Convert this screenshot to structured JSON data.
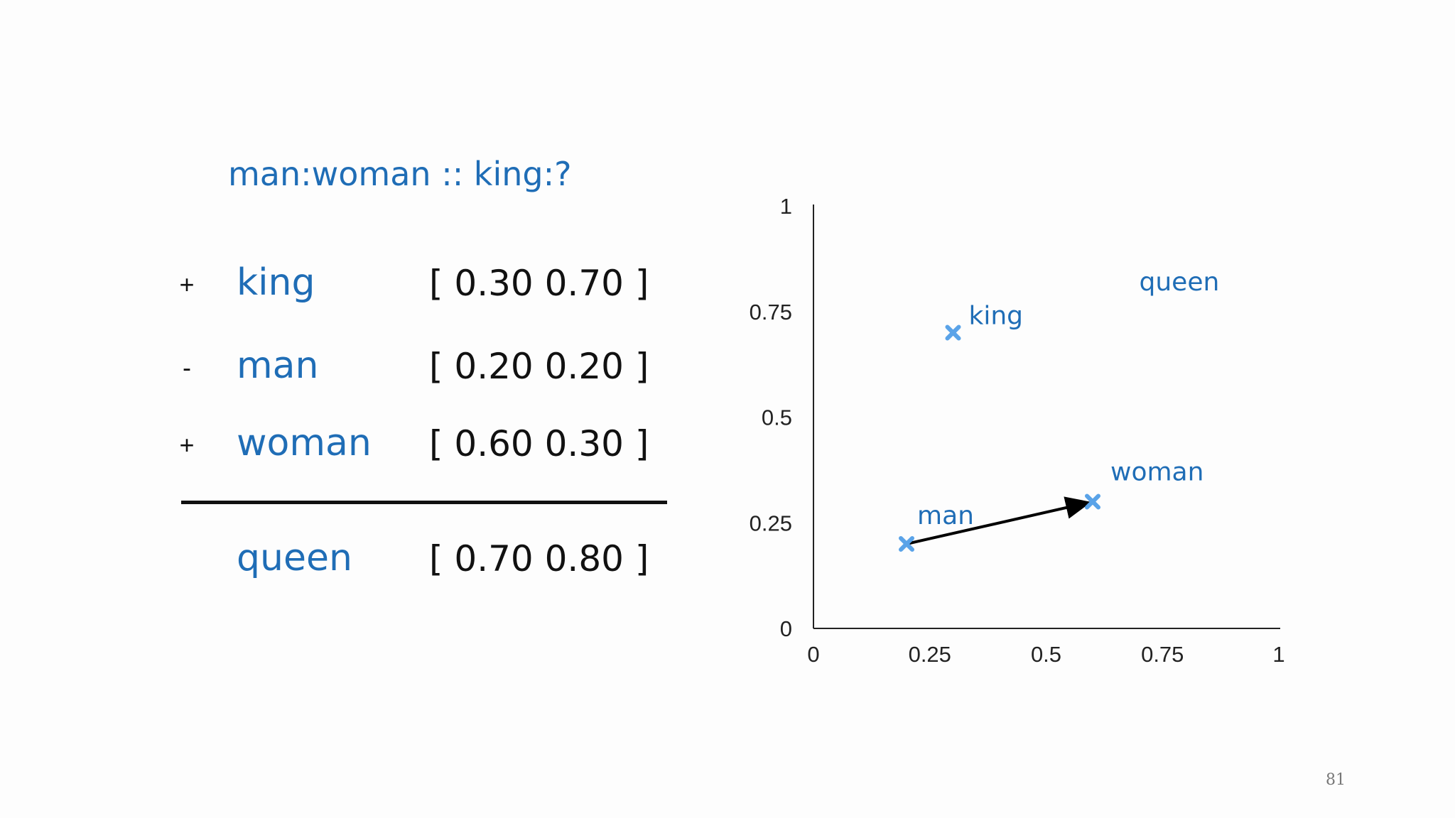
{
  "slide": {
    "title": "man:woman :: king:?",
    "rows": [
      {
        "op": "+",
        "word": "king",
        "vector": "[ 0.30 0.70 ]"
      },
      {
        "op": "-",
        "word": "man",
        "vector": "[ 0.20 0.20 ]"
      },
      {
        "op": "+",
        "word": "woman",
        "vector": "[ 0.60 0.30 ]"
      }
    ],
    "result": {
      "word": "queen",
      "vector": "[ 0.70 0.80 ]"
    },
    "page_number": "81"
  },
  "chart_data": {
    "type": "scatter",
    "xlim": [
      0,
      1
    ],
    "ylim": [
      0,
      1
    ],
    "x_ticks": [
      "0",
      "0.25",
      "0.5",
      "0.75",
      "1"
    ],
    "y_ticks": [
      "0",
      "0.25",
      "0.5",
      "0.75",
      "1"
    ],
    "grid": false,
    "points": [
      {
        "label": "king",
        "x": 0.3,
        "y": 0.7,
        "marker": true
      },
      {
        "label": "man",
        "x": 0.2,
        "y": 0.2,
        "marker": true
      },
      {
        "label": "woman",
        "x": 0.6,
        "y": 0.3,
        "marker": true
      },
      {
        "label": "queen",
        "x": 0.7,
        "y": 0.8,
        "marker": false
      }
    ],
    "arrow": {
      "from": "man",
      "to": "woman"
    },
    "colors": {
      "label": "#1f6db6",
      "marker": "#5aa3e8",
      "axis": "#222222"
    }
  }
}
